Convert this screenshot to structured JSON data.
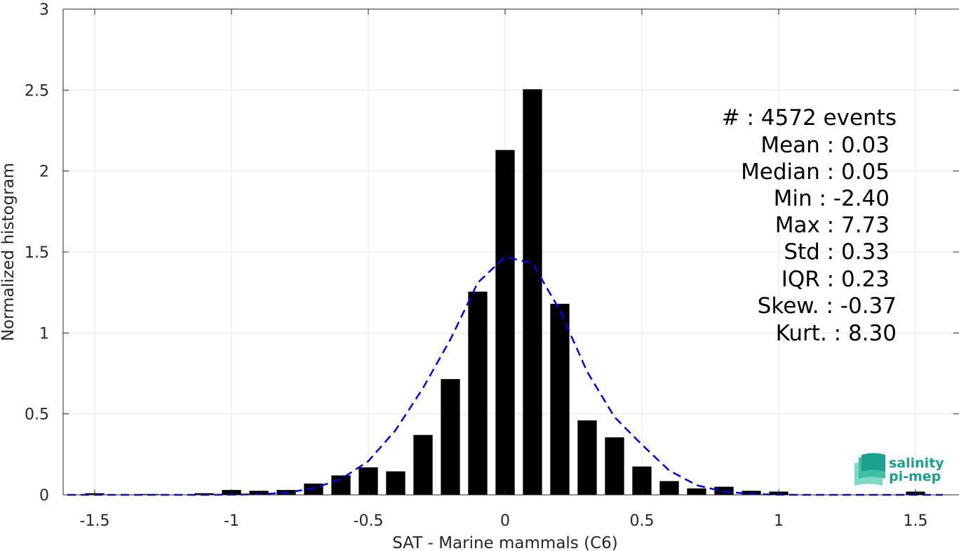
{
  "chart_data": {
    "type": "bar",
    "xlabel": "SAT - Marine mammals (C6)",
    "ylabel": "Normalized histogram",
    "xlim": [
      -1.6,
      1.6
    ],
    "ylim": [
      0,
      3
    ],
    "xticks": [
      -1.5,
      -1,
      -0.5,
      0,
      0.5,
      1,
      1.5
    ],
    "xtick_labels": [
      "-1.5",
      "-1",
      "-0.5",
      "0",
      "0.5",
      "1",
      "1.5"
    ],
    "yticks": [
      0,
      0.5,
      1,
      1.5,
      2,
      2.5,
      3
    ],
    "ytick_labels": [
      "0",
      "0.5",
      "1",
      "1.5",
      "2",
      "2.5",
      "3"
    ],
    "grid": true,
    "bar_color": "#000000",
    "bar_width": 0.07,
    "series": [
      {
        "x": [
          -1.5,
          -1.3,
          -1.1,
          -1.0,
          -0.9,
          -0.8,
          -0.7,
          -0.6,
          -0.5,
          -0.4,
          -0.3,
          -0.2,
          -0.1,
          0.0,
          0.1,
          0.2,
          0.3,
          0.4,
          0.5,
          0.6,
          0.7,
          0.8,
          0.9,
          1.0,
          1.5
        ],
        "values": [
          0.01,
          0.005,
          0.01,
          0.03,
          0.025,
          0.03,
          0.07,
          0.12,
          0.17,
          0.145,
          0.37,
          0.715,
          1.255,
          2.13,
          2.505,
          1.18,
          0.46,
          0.355,
          0.175,
          0.085,
          0.04,
          0.05,
          0.025,
          0.02,
          0.02
        ]
      }
    ],
    "fit_curve": {
      "style": "dashed",
      "color": "#0000ee",
      "x": [
        -1.6,
        -1.5,
        -1.4,
        -1.3,
        -1.2,
        -1.1,
        -1.0,
        -0.9,
        -0.8,
        -0.7,
        -0.6,
        -0.5,
        -0.4,
        -0.3,
        -0.2,
        -0.1,
        0.0,
        0.1,
        0.2,
        0.3,
        0.4,
        0.5,
        0.6,
        0.7,
        0.8,
        0.9,
        1.0,
        1.1,
        1.2,
        1.3,
        1.4,
        1.5,
        1.6
      ],
      "y": [
        0,
        0,
        0,
        0,
        0,
        0,
        0.001,
        0.004,
        0.013,
        0.04,
        0.097,
        0.208,
        0.4,
        0.66,
        0.96,
        1.31,
        1.47,
        1.43,
        1.14,
        0.76,
        0.48,
        0.31,
        0.15,
        0.06,
        0.02,
        0.005,
        0.001,
        0,
        0,
        0,
        0,
        0,
        0
      ]
    },
    "annotations": [
      "#  : 4572 events",
      "Mean : 0.03",
      "Median : 0.05",
      "Min : -2.40",
      "Max : 7.73",
      "Std : 0.33",
      "IQR : 0.23",
      "Skew. : -0.37",
      "Kurt. : 8.30"
    ]
  },
  "logo": {
    "line1": "salinity",
    "line2": "pi-mep",
    "color": "#1aa08c"
  }
}
